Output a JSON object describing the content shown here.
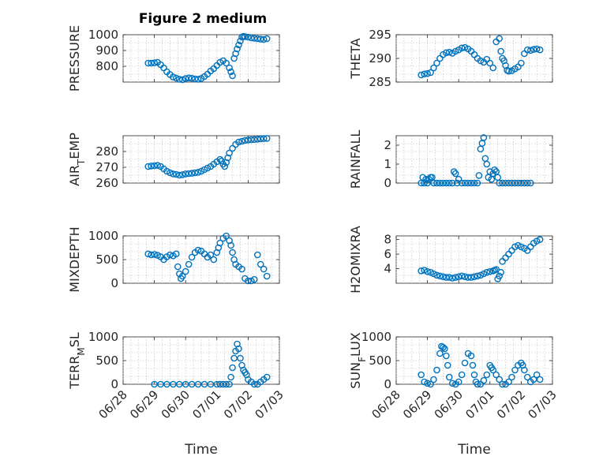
{
  "figure_title": "Figure 2 medium",
  "colors": {
    "series": "#0072bd",
    "axis": "#262626",
    "grid": "#b8b8b8"
  },
  "chart_data": [
    {
      "type": "scatter",
      "title": "Figure 2 medium",
      "ylabel": "PRESSURE",
      "xlabel": "",
      "ylim": [
        700,
        1000
      ],
      "yticks": [
        800,
        900,
        1000
      ],
      "xlim": [
        "06/28",
        "07/03"
      ],
      "xticks": [
        "06/28",
        "06/29",
        "06/30",
        "07/01",
        "07/02",
        "07/03"
      ],
      "show_xticklabels": false,
      "grid": true,
      "x": [
        0.8,
        0.9,
        1.0,
        1.1,
        1.2,
        1.3,
        1.4,
        1.5,
        1.6,
        1.7,
        1.8,
        1.9,
        2.0,
        2.1,
        2.2,
        2.3,
        2.4,
        2.5,
        2.6,
        2.7,
        2.8,
        2.9,
        3.0,
        3.1,
        3.2,
        3.3,
        3.4,
        3.45,
        3.5,
        3.55,
        3.6,
        3.65,
        3.7,
        3.75,
        3.8,
        3.85,
        3.9,
        4.0,
        4.1,
        4.2,
        4.3,
        4.4,
        4.5,
        4.6
      ],
      "y": [
        820,
        820,
        822,
        825,
        810,
        790,
        765,
        748,
        732,
        725,
        718,
        715,
        722,
        726,
        724,
        720,
        718,
        723,
        735,
        750,
        770,
        785,
        805,
        825,
        835,
        820,
        790,
        765,
        740,
        850,
        880,
        910,
        935,
        960,
        985,
        990,
        988,
        985,
        980,
        978,
        975,
        972,
        970,
        975
      ]
    },
    {
      "type": "scatter",
      "title": "",
      "ylabel": "THETA",
      "xlabel": "",
      "ylim": [
        285,
        295
      ],
      "yticks": [
        285,
        290,
        295
      ],
      "xlim": [
        "06/28",
        "07/03"
      ],
      "xticks": [
        "06/28",
        "06/29",
        "06/30",
        "07/01",
        "07/02",
        "07/03"
      ],
      "show_xticklabels": false,
      "grid": true,
      "x": [
        0.8,
        0.9,
        1.0,
        1.1,
        1.2,
        1.3,
        1.4,
        1.5,
        1.6,
        1.7,
        1.8,
        1.9,
        2.0,
        2.1,
        2.2,
        2.3,
        2.4,
        2.5,
        2.6,
        2.7,
        2.8,
        2.9,
        3.0,
        3.1,
        3.2,
        3.3,
        3.35,
        3.4,
        3.45,
        3.5,
        3.55,
        3.6,
        3.7,
        3.8,
        3.9,
        4.0,
        4.1,
        4.2,
        4.3,
        4.4,
        4.5,
        4.6
      ],
      "y": [
        286.5,
        286.7,
        286.8,
        287.0,
        288.0,
        289.0,
        290.0,
        290.8,
        291.2,
        291.3,
        291.1,
        291.5,
        291.8,
        292.2,
        292.3,
        292.0,
        291.5,
        290.8,
        290.0,
        289.5,
        289.2,
        289.8,
        289.0,
        288.0,
        293.5,
        294.2,
        291.5,
        290.0,
        289.5,
        288.5,
        287.5,
        287.3,
        287.4,
        287.8,
        288.2,
        289.0,
        291.0,
        291.8,
        291.7,
        291.9,
        292.0,
        291.8
      ]
    },
    {
      "type": "scatter",
      "title": "",
      "ylabel": "AIR_TEMP",
      "xlabel": "",
      "ylim": [
        260,
        290
      ],
      "yticks": [
        260,
        270,
        280
      ],
      "xlim": [
        "06/28",
        "07/03"
      ],
      "xticks": [
        "06/28",
        "06/29",
        "06/30",
        "07/01",
        "07/02",
        "07/03"
      ],
      "show_xticklabels": false,
      "grid": true,
      "x": [
        0.8,
        0.9,
        1.0,
        1.1,
        1.2,
        1.3,
        1.4,
        1.5,
        1.6,
        1.7,
        1.8,
        1.9,
        2.0,
        2.1,
        2.2,
        2.3,
        2.4,
        2.5,
        2.6,
        2.7,
        2.8,
        2.9,
        3.0,
        3.1,
        3.15,
        3.2,
        3.25,
        3.3,
        3.35,
        3.4,
        3.5,
        3.6,
        3.7,
        3.8,
        3.9,
        4.0,
        4.1,
        4.2,
        4.3,
        4.4,
        4.5,
        4.6
      ],
      "y": [
        270.5,
        270.8,
        271.0,
        271.2,
        270.5,
        269.0,
        267.5,
        266.5,
        265.8,
        265.5,
        265.0,
        265.3,
        265.8,
        266.0,
        266.2,
        266.5,
        266.8,
        267.5,
        268.5,
        269.5,
        270.5,
        272.0,
        273.5,
        275.0,
        274.0,
        272.0,
        270.5,
        273.0,
        276.0,
        279.0,
        282.0,
        284.5,
        286.0,
        286.5,
        287.0,
        287.3,
        287.5,
        287.6,
        287.8,
        288.0,
        288.2,
        288.3
      ]
    },
    {
      "type": "scatter",
      "title": "",
      "ylabel": "RAINFALL",
      "xlabel": "",
      "ylim": [
        0,
        2.5
      ],
      "yticks": [
        0,
        1,
        2
      ],
      "xlim": [
        "06/28",
        "07/03"
      ],
      "xticks": [
        "06/28",
        "06/29",
        "06/30",
        "07/01",
        "07/02",
        "07/03"
      ],
      "show_xticklabels": false,
      "grid": true,
      "x": [
        0.8,
        0.85,
        0.9,
        0.95,
        1.0,
        1.05,
        1.1,
        1.15,
        1.2,
        1.3,
        1.4,
        1.5,
        1.6,
        1.7,
        1.8,
        1.85,
        1.9,
        1.95,
        2.0,
        2.1,
        2.2,
        2.3,
        2.4,
        2.5,
        2.6,
        2.65,
        2.7,
        2.75,
        2.8,
        2.85,
        2.9,
        2.95,
        3.0,
        3.05,
        3.1,
        3.15,
        3.2,
        3.25,
        3.3,
        3.4,
        3.5,
        3.6,
        3.7,
        3.8,
        3.9,
        4.0,
        4.1,
        4.2,
        4.3
      ],
      "y": [
        0.0,
        0.3,
        0.0,
        0.2,
        0.0,
        0.2,
        0.3,
        0.3,
        0.0,
        0.0,
        0.0,
        0.0,
        0.0,
        0.0,
        0.0,
        0.6,
        0.5,
        0.0,
        0.2,
        0.0,
        0.0,
        0.0,
        0.0,
        0.0,
        0.0,
        0.4,
        1.8,
        2.1,
        2.4,
        1.3,
        1.0,
        0.3,
        0.6,
        0.2,
        0.5,
        0.7,
        0.6,
        0.3,
        0.0,
        0.0,
        0.0,
        0.0,
        0.0,
        0.0,
        0.0,
        0.0,
        0.0,
        0.0,
        0.0
      ]
    },
    {
      "type": "scatter",
      "title": "",
      "ylabel": "MIXDEPTH",
      "xlabel": "",
      "ylim": [
        0,
        1000
      ],
      "yticks": [
        0,
        500,
        1000
      ],
      "xlim": [
        "06/28",
        "07/03"
      ],
      "xticks": [
        "06/28",
        "06/29",
        "06/30",
        "07/01",
        "07/02",
        "07/03"
      ],
      "show_xticklabels": false,
      "grid": true,
      "x": [
        0.8,
        0.9,
        1.0,
        1.1,
        1.2,
        1.3,
        1.4,
        1.5,
        1.6,
        1.7,
        1.75,
        1.8,
        1.85,
        1.9,
        2.0,
        2.1,
        2.2,
        2.3,
        2.4,
        2.5,
        2.6,
        2.7,
        2.8,
        2.9,
        3.0,
        3.05,
        3.1,
        3.2,
        3.3,
        3.4,
        3.45,
        3.5,
        3.55,
        3.6,
        3.7,
        3.8,
        3.9,
        4.0,
        4.1,
        4.2,
        4.3,
        4.4,
        4.5,
        4.6
      ],
      "y": [
        620,
        600,
        610,
        590,
        560,
        500,
        560,
        600,
        580,
        620,
        350,
        200,
        100,
        150,
        250,
        400,
        550,
        650,
        700,
        680,
        620,
        550,
        600,
        500,
        650,
        750,
        850,
        950,
        1000,
        900,
        800,
        650,
        500,
        400,
        350,
        300,
        100,
        50,
        50,
        80,
        600,
        400,
        300,
        150
      ]
    },
    {
      "type": "scatter",
      "title": "",
      "ylabel": "H2OMIXRA",
      "xlabel": "",
      "ylim": [
        2,
        8.5
      ],
      "yticks": [
        4,
        6,
        8
      ],
      "xlim": [
        "06/28",
        "07/03"
      ],
      "xticks": [
        "06/28",
        "06/29",
        "06/30",
        "07/01",
        "07/02",
        "07/03"
      ],
      "show_xticklabels": false,
      "grid": true,
      "x": [
        0.8,
        0.9,
        1.0,
        1.1,
        1.2,
        1.3,
        1.4,
        1.5,
        1.6,
        1.7,
        1.8,
        1.9,
        2.0,
        2.1,
        2.2,
        2.3,
        2.4,
        2.5,
        2.6,
        2.7,
        2.8,
        2.9,
        3.0,
        3.1,
        3.15,
        3.2,
        3.25,
        3.3,
        3.35,
        3.4,
        3.5,
        3.6,
        3.7,
        3.8,
        3.9,
        4.0,
        4.1,
        4.2,
        4.3,
        4.4,
        4.5,
        4.6
      ],
      "y": [
        3.7,
        3.8,
        3.6,
        3.5,
        3.3,
        3.1,
        3.0,
        2.9,
        2.8,
        2.8,
        2.7,
        2.8,
        2.9,
        3.0,
        2.9,
        2.8,
        2.8,
        2.9,
        3.0,
        3.1,
        3.3,
        3.5,
        3.6,
        3.7,
        3.8,
        3.9,
        2.6,
        3.0,
        3.5,
        5.0,
        5.5,
        6.0,
        6.5,
        7.0,
        7.2,
        7.0,
        6.8,
        6.5,
        7.0,
        7.5,
        7.8,
        8.0
      ]
    },
    {
      "type": "scatter",
      "title": "",
      "ylabel": "TERR_MSL",
      "xlabel": "Time",
      "ylim": [
        0,
        1000
      ],
      "yticks": [
        0,
        500,
        1000
      ],
      "xlim": [
        "06/28",
        "07/03"
      ],
      "xticks": [
        "06/28",
        "06/29",
        "06/30",
        "07/01",
        "07/02",
        "07/03"
      ],
      "show_xticklabels": true,
      "grid": true,
      "x": [
        1.0,
        1.2,
        1.4,
        1.6,
        1.8,
        2.0,
        2.2,
        2.4,
        2.6,
        2.8,
        3.0,
        3.1,
        3.2,
        3.3,
        3.4,
        3.45,
        3.5,
        3.55,
        3.6,
        3.65,
        3.7,
        3.75,
        3.8,
        3.85,
        3.9,
        3.95,
        4.0,
        4.1,
        4.2,
        4.3,
        4.4,
        4.5,
        4.6
      ],
      "y": [
        0,
        0,
        0,
        0,
        0,
        0,
        0,
        0,
        0,
        0,
        0,
        0,
        0,
        0,
        0,
        150,
        350,
        550,
        700,
        850,
        750,
        550,
        400,
        300,
        250,
        200,
        100,
        50,
        0,
        0,
        50,
        100,
        150
      ]
    },
    {
      "type": "scatter",
      "title": "",
      "ylabel": "SUN_FLUX",
      "xlabel": "Time",
      "ylim": [
        0,
        1000
      ],
      "yticks": [
        0,
        500,
        1000
      ],
      "xlim": [
        "06/28",
        "07/03"
      ],
      "xticks": [
        "06/28",
        "06/29",
        "06/30",
        "07/01",
        "07/02",
        "07/03"
      ],
      "show_xticklabels": true,
      "grid": true,
      "x": [
        0.8,
        0.9,
        1.0,
        1.1,
        1.2,
        1.3,
        1.4,
        1.45,
        1.5,
        1.55,
        1.6,
        1.65,
        1.7,
        1.8,
        1.9,
        2.0,
        2.1,
        2.2,
        2.3,
        2.4,
        2.45,
        2.5,
        2.55,
        2.6,
        2.7,
        2.8,
        2.9,
        3.0,
        3.05,
        3.1,
        3.2,
        3.3,
        3.4,
        3.5,
        3.6,
        3.7,
        3.8,
        3.9,
        4.0,
        4.05,
        4.1,
        4.2,
        4.3,
        4.4,
        4.5,
        4.6
      ],
      "y": [
        200,
        50,
        20,
        0,
        100,
        300,
        650,
        800,
        780,
        750,
        600,
        400,
        150,
        20,
        0,
        50,
        200,
        450,
        650,
        600,
        400,
        200,
        50,
        0,
        0,
        80,
        200,
        400,
        350,
        300,
        200,
        100,
        0,
        0,
        50,
        150,
        300,
        400,
        450,
        400,
        300,
        150,
        50,
        100,
        200,
        100
      ]
    }
  ]
}
